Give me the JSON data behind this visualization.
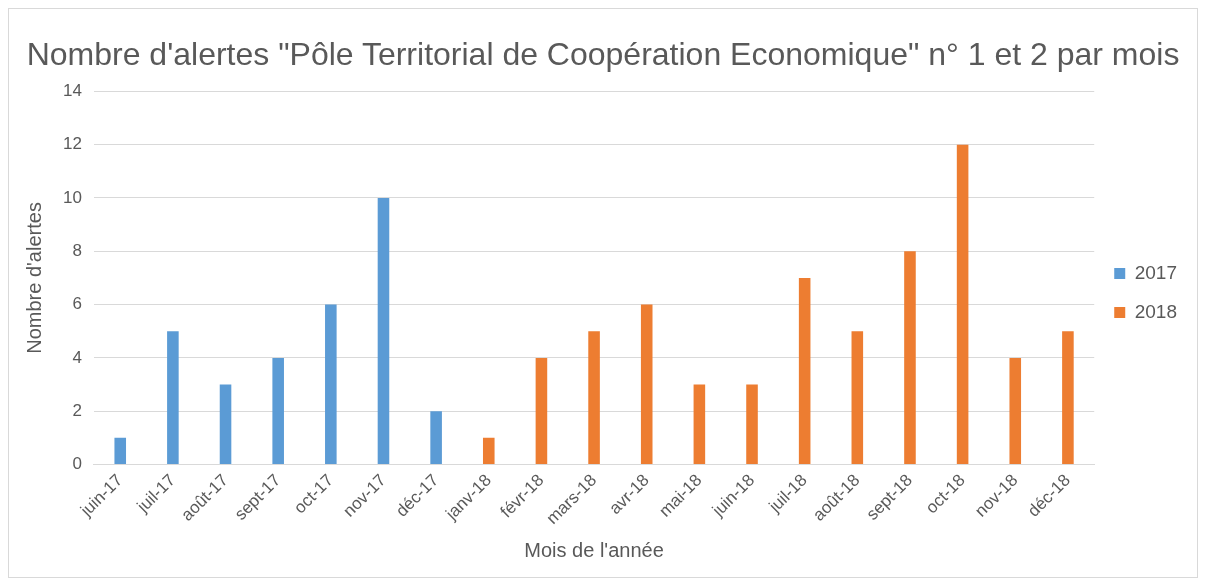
{
  "chart_data": {
    "type": "bar",
    "title": "Nombre d'alertes \"Pôle Territorial de Coopération Economique\" n° 1 et 2 par mois",
    "xlabel": "Mois de l'année",
    "ylabel": "Nombre d'alertes",
    "categories": [
      "juin-17",
      "juil-17",
      "août-17",
      "sept-17",
      "oct-17",
      "nov-17",
      "déc-17",
      "janv-18",
      "févr-18",
      "mars-18",
      "avr-18",
      "mai-18",
      "juin-18",
      "juil-18",
      "août-18",
      "sept-18",
      "oct-18",
      "nov-18",
      "déc-18"
    ],
    "series": [
      {
        "name": "2017",
        "color": "#5b9bd5",
        "values": [
          1,
          5,
          3,
          4,
          6,
          10,
          2,
          null,
          null,
          null,
          null,
          null,
          null,
          null,
          null,
          null,
          null,
          null,
          null
        ]
      },
      {
        "name": "2018",
        "color": "#ed7d31",
        "values": [
          null,
          null,
          null,
          null,
          null,
          null,
          null,
          1,
          4,
          5,
          6,
          3,
          3,
          7,
          5,
          8,
          12,
          4,
          5
        ]
      }
    ],
    "ylim": [
      0,
      14
    ],
    "yticks": [
      0,
      2,
      4,
      6,
      8,
      10,
      12,
      14
    ],
    "grid": "y",
    "legend": "right"
  }
}
